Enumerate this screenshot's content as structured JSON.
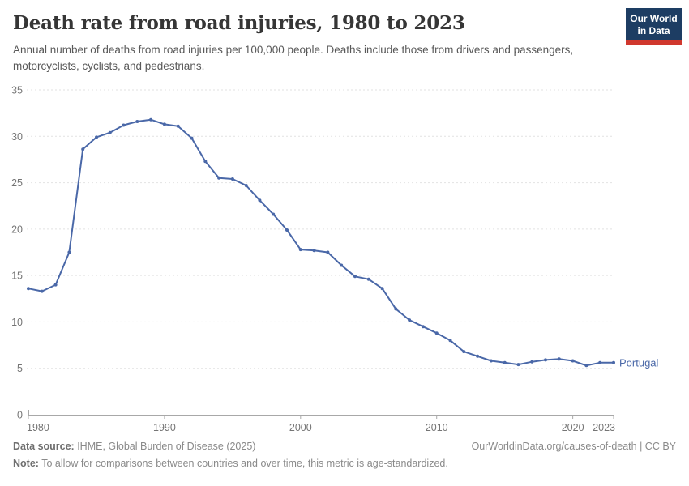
{
  "header": {
    "title": "Death rate from road injuries, 1980 to 2023",
    "subtitle": "Annual number of deaths from road injuries per 100,000 people. Deaths include those from drivers and passengers, motorcyclists, cyclists, and pedestrians."
  },
  "logo": {
    "line1": "Our World",
    "line2": "in Data",
    "bg_color": "#1d3d63",
    "bar_color": "#d0382e"
  },
  "chart_data": {
    "type": "line",
    "title": "Death rate from road injuries, 1980 to 2023",
    "xlabel": "",
    "ylabel": "",
    "entity_label": "Portugal",
    "x": [
      1980,
      1981,
      1982,
      1983,
      1984,
      1985,
      1986,
      1987,
      1988,
      1989,
      1990,
      1991,
      1992,
      1993,
      1994,
      1995,
      1996,
      1997,
      1998,
      1999,
      2000,
      2001,
      2002,
      2003,
      2004,
      2005,
      2006,
      2007,
      2008,
      2009,
      2010,
      2011,
      2012,
      2013,
      2014,
      2015,
      2016,
      2017,
      2018,
      2019,
      2020,
      2021,
      2022,
      2023
    ],
    "series": [
      {
        "name": "Portugal",
        "color": "#4a68a8",
        "values": [
          13.6,
          13.3,
          14.0,
          17.5,
          28.6,
          29.9,
          30.4,
          31.2,
          31.6,
          31.8,
          31.3,
          31.1,
          29.8,
          27.3,
          25.5,
          25.4,
          24.7,
          23.1,
          21.6,
          19.9,
          17.8,
          17.7,
          17.5,
          16.1,
          14.9,
          14.6,
          13.6,
          11.4,
          10.2,
          9.5,
          8.8,
          8.0,
          6.8,
          6.3,
          5.8,
          5.6,
          5.4,
          5.7,
          5.9,
          6.0,
          5.8,
          5.3,
          5.6,
          5.6
        ]
      }
    ],
    "ylim": [
      0,
      35
    ],
    "yticks": [
      0,
      5,
      10,
      15,
      20,
      25,
      30,
      35
    ],
    "xticks": [
      1980,
      1990,
      2000,
      2010,
      2020,
      2023
    ],
    "grid": "horizontal-dashed",
    "legend_position": "end-of-line",
    "colors": {
      "grid": "#e2e2e2",
      "axis": "#a8a8a8",
      "tick_text": "#757575"
    }
  },
  "footer": {
    "source_label": "Data source:",
    "source_text": " IHME, Global Burden of Disease (2025)",
    "rights": "OurWorldinData.org/causes-of-death | CC BY",
    "note_label": "Note:",
    "note_text": " To allow for comparisons between countries and over time, this metric is age-standardized."
  }
}
